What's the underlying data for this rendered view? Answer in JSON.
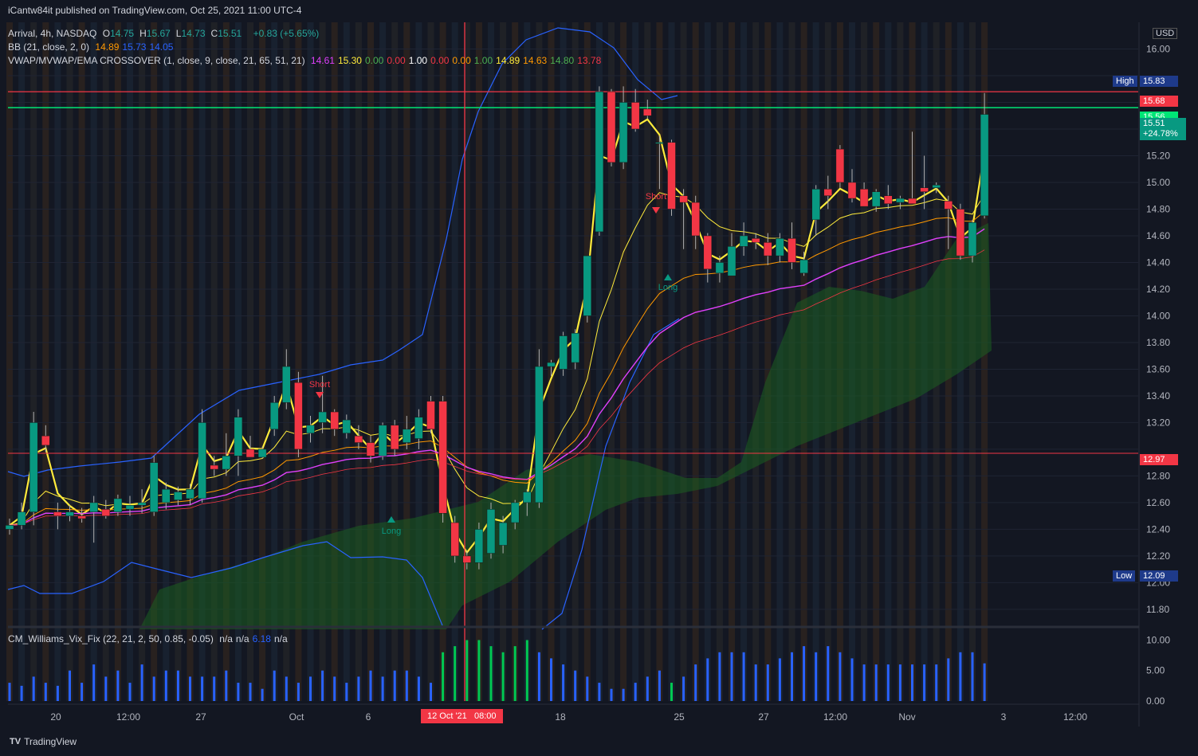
{
  "published": "iCantw84it published on TradingView.com, Oct 25, 2021 11:00 UTC-4",
  "legend": {
    "symbol": "Arrival, 4h, NASDAQ",
    "ohlc": [
      {
        "k": "O",
        "v": "14.75"
      },
      {
        "k": "H",
        "v": "15.67"
      },
      {
        "k": "L",
        "v": "14.73"
      },
      {
        "k": "C",
        "v": "15.51"
      }
    ],
    "change": "+0.83 (+5.65%)",
    "bb_label": "BB (21, close, 2, 0)",
    "bb_values": [
      {
        "v": "14.89",
        "color": "#ff9800"
      },
      {
        "v": "15.73",
        "color": "#2962ff"
      },
      {
        "v": "14.05",
        "color": "#2962ff"
      }
    ],
    "vwap_label": "VWAP/MVWAP/EMA CROSSOVER (1, close, 9, close, 21, 65, 51, 21)",
    "vwap_values": [
      {
        "v": "14.61",
        "color": "#e040fb"
      },
      {
        "v": "15.30",
        "color": "#ffeb3b"
      },
      {
        "v": "0.00",
        "color": "#4caf50"
      },
      {
        "v": "0.00",
        "color": "#f23645"
      },
      {
        "v": "1.00",
        "color": "#ffffff"
      },
      {
        "v": "0.00",
        "color": "#f23645"
      },
      {
        "v": "0.00",
        "color": "#ff9800"
      },
      {
        "v": "1.00",
        "color": "#4caf50"
      },
      {
        "v": "14.89",
        "color": "#ffeb3b"
      },
      {
        "v": "14.63",
        "color": "#ff9800"
      },
      {
        "v": "14.80",
        "color": "#4caf50"
      },
      {
        "v": "13.78",
        "color": "#f23645"
      }
    ],
    "cm_label": "CM_Williams_Vix_Fix (22, 21, 2, 50, 0.85, -0.05)",
    "cm_values": [
      "n/a",
      "n/a",
      "6.18",
      "n/a"
    ]
  },
  "currency": "USD",
  "price_axis": [
    "16.00",
    "15.60",
    "15.40",
    "15.20",
    "15.00",
    "14.80",
    "14.60",
    "14.40",
    "14.20",
    "14.00",
    "13.80",
    "13.60",
    "13.40",
    "13.20",
    "12.80",
    "12.60",
    "12.40",
    "12.20",
    "12.00",
    "11.80"
  ],
  "vix_axis": [
    "10.00",
    "5.00",
    "0.00"
  ],
  "time_axis": [
    {
      "t": "20",
      "x": 70
    },
    {
      "t": "12:00",
      "x": 161
    },
    {
      "t": "27",
      "x": 252
    },
    {
      "t": "Oct",
      "x": 372
    },
    {
      "t": "6",
      "x": 462
    },
    {
      "t": "18",
      "x": 703
    },
    {
      "t": "25",
      "x": 852
    },
    {
      "t": "27",
      "x": 958
    },
    {
      "t": "12:00",
      "x": 1048
    },
    {
      "t": "Nov",
      "x": 1138
    },
    {
      "t": "3",
      "x": 1259
    },
    {
      "t": "12:00",
      "x": 1349
    }
  ],
  "crosshair_date": "12 Oct '21",
  "crosshair_time": "08:00",
  "high_label": "High",
  "high_value": "15.83",
  "low_label": "Low",
  "low_value": "12.09",
  "line_red_top": "15.68",
  "line_green": "15.56",
  "last_price": "15.51",
  "last_change": "+24.78%",
  "line_red_bottom": "12.97",
  "signals": [
    "Short",
    "Long",
    "Short",
    "Long"
  ],
  "footer": "TradingView",
  "chart_data": {
    "type": "candlestick",
    "title": "Arrival, 4h, NASDAQ",
    "ylim": [
      11.7,
      16.2
    ],
    "candles": [
      {
        "o": 12.4,
        "h": 12.48,
        "l": 12.36,
        "c": 12.43
      },
      {
        "o": 12.43,
        "h": 12.6,
        "l": 12.4,
        "c": 12.53
      },
      {
        "o": 12.53,
        "h": 13.28,
        "l": 12.43,
        "c": 13.2
      },
      {
        "o": 13.1,
        "h": 13.18,
        "l": 12.98,
        "c": 13.03
      },
      {
        "o": 12.53,
        "h": 12.6,
        "l": 12.4,
        "c": 12.5
      },
      {
        "o": 12.5,
        "h": 12.58,
        "l": 12.46,
        "c": 12.53
      },
      {
        "o": 12.5,
        "h": 12.56,
        "l": 12.45,
        "c": 12.48
      },
      {
        "o": 12.53,
        "h": 12.65,
        "l": 12.3,
        "c": 12.6
      },
      {
        "o": 12.55,
        "h": 12.62,
        "l": 12.48,
        "c": 12.5
      },
      {
        "o": 12.53,
        "h": 12.66,
        "l": 12.5,
        "c": 12.63
      },
      {
        "o": 12.55,
        "h": 12.65,
        "l": 12.5,
        "c": 12.58
      },
      {
        "o": 12.58,
        "h": 12.7,
        "l": 12.52,
        "c": 12.6
      },
      {
        "o": 12.53,
        "h": 12.95,
        "l": 12.5,
        "c": 12.9
      },
      {
        "o": 12.6,
        "h": 12.75,
        "l": 12.55,
        "c": 12.7
      },
      {
        "o": 12.62,
        "h": 12.72,
        "l": 12.58,
        "c": 12.68
      },
      {
        "o": 12.63,
        "h": 12.74,
        "l": 12.58,
        "c": 12.7
      },
      {
        "o": 12.63,
        "h": 13.3,
        "l": 12.6,
        "c": 13.2
      },
      {
        "o": 12.88,
        "h": 12.95,
        "l": 12.8,
        "c": 12.85
      },
      {
        "o": 12.85,
        "h": 13.12,
        "l": 12.8,
        "c": 12.95
      },
      {
        "o": 12.95,
        "h": 13.3,
        "l": 12.8,
        "c": 13.24
      },
      {
        "o": 13.0,
        "h": 13.1,
        "l": 12.94,
        "c": 12.94
      },
      {
        "o": 12.94,
        "h": 13.02,
        "l": 12.93,
        "c": 13.0
      },
      {
        "o": 13.15,
        "h": 13.4,
        "l": 13.1,
        "c": 13.35
      },
      {
        "o": 13.35,
        "h": 13.75,
        "l": 13.3,
        "c": 13.62
      },
      {
        "o": 13.5,
        "h": 13.58,
        "l": 12.94,
        "c": 13.0
      },
      {
        "o": 13.12,
        "h": 13.25,
        "l": 13.05,
        "c": 13.18
      },
      {
        "o": 13.2,
        "h": 13.55,
        "l": 13.12,
        "c": 13.28
      },
      {
        "o": 13.28,
        "h": 13.3,
        "l": 13.1,
        "c": 13.15
      },
      {
        "o": 13.12,
        "h": 13.26,
        "l": 13.08,
        "c": 13.22
      },
      {
        "o": 13.1,
        "h": 13.18,
        "l": 13.0,
        "c": 13.05
      },
      {
        "o": 13.05,
        "h": 13.1,
        "l": 12.9,
        "c": 12.95
      },
      {
        "o": 12.95,
        "h": 13.2,
        "l": 12.92,
        "c": 13.18
      },
      {
        "o": 13.18,
        "h": 13.22,
        "l": 12.95,
        "c": 13.0
      },
      {
        "o": 13.05,
        "h": 13.25,
        "l": 13.0,
        "c": 13.15
      },
      {
        "o": 13.08,
        "h": 13.3,
        "l": 13.0,
        "c": 13.24
      },
      {
        "o": 13.36,
        "h": 13.4,
        "l": 13.12,
        "c": 13.15
      },
      {
        "o": 13.36,
        "h": 13.4,
        "l": 12.45,
        "c": 12.52
      },
      {
        "o": 12.45,
        "h": 12.5,
        "l": 12.15,
        "c": 12.2
      },
      {
        "o": 12.2,
        "h": 12.24,
        "l": 12.1,
        "c": 12.15
      },
      {
        "o": 12.15,
        "h": 12.45,
        "l": 12.1,
        "c": 12.4
      },
      {
        "o": 12.22,
        "h": 12.6,
        "l": 12.18,
        "c": 12.55
      },
      {
        "o": 12.28,
        "h": 12.5,
        "l": 12.22,
        "c": 12.45
      },
      {
        "o": 12.45,
        "h": 12.62,
        "l": 12.4,
        "c": 12.6
      },
      {
        "o": 12.6,
        "h": 12.7,
        "l": 12.5,
        "c": 12.68
      },
      {
        "o": 12.6,
        "h": 13.75,
        "l": 12.56,
        "c": 13.62
      },
      {
        "o": 13.62,
        "h": 13.67,
        "l": 13.55,
        "c": 13.65
      },
      {
        "o": 13.6,
        "h": 13.88,
        "l": 13.55,
        "c": 13.85
      },
      {
        "o": 13.65,
        "h": 13.9,
        "l": 13.6,
        "c": 13.87
      },
      {
        "o": 14.0,
        "h": 14.45,
        "l": 13.95,
        "c": 14.45
      },
      {
        "o": 14.63,
        "h": 15.72,
        "l": 14.6,
        "c": 15.68
      },
      {
        "o": 15.68,
        "h": 15.7,
        "l": 15.12,
        "c": 15.15
      },
      {
        "o": 15.15,
        "h": 15.72,
        "l": 15.1,
        "c": 15.6
      },
      {
        "o": 15.6,
        "h": 15.7,
        "l": 15.38,
        "c": 15.4
      },
      {
        "o": 15.55,
        "h": 15.62,
        "l": 15.48,
        "c": 15.5
      },
      {
        "o": 15.3,
        "h": 15.35,
        "l": 14.95,
        "c": 15.3
      },
      {
        "o": 15.3,
        "h": 15.32,
        "l": 14.75,
        "c": 14.8
      },
      {
        "o": 14.9,
        "h": 14.95,
        "l": 14.5,
        "c": 14.85
      },
      {
        "o": 14.85,
        "h": 14.9,
        "l": 14.5,
        "c": 14.6
      },
      {
        "o": 14.6,
        "h": 14.62,
        "l": 14.25,
        "c": 14.35
      },
      {
        "o": 14.32,
        "h": 14.45,
        "l": 14.25,
        "c": 14.4
      },
      {
        "o": 14.3,
        "h": 14.62,
        "l": 14.3,
        "c": 14.52
      },
      {
        "o": 14.52,
        "h": 14.7,
        "l": 14.45,
        "c": 14.6
      },
      {
        "o": 14.58,
        "h": 14.62,
        "l": 14.5,
        "c": 14.55
      },
      {
        "o": 14.55,
        "h": 14.62,
        "l": 14.38,
        "c": 14.45
      },
      {
        "o": 14.45,
        "h": 14.62,
        "l": 14.4,
        "c": 14.58
      },
      {
        "o": 14.58,
        "h": 14.7,
        "l": 14.35,
        "c": 14.4
      },
      {
        "o": 14.32,
        "h": 14.48,
        "l": 14.3,
        "c": 14.42
      },
      {
        "o": 14.72,
        "h": 14.98,
        "l": 14.6,
        "c": 14.95
      },
      {
        "o": 14.95,
        "h": 15.05,
        "l": 14.8,
        "c": 14.9
      },
      {
        "o": 15.25,
        "h": 15.28,
        "l": 14.96,
        "c": 15.0
      },
      {
        "o": 15.0,
        "h": 15.1,
        "l": 14.85,
        "c": 14.88
      },
      {
        "o": 14.95,
        "h": 15.0,
        "l": 14.82,
        "c": 14.82
      },
      {
        "o": 14.82,
        "h": 14.95,
        "l": 14.78,
        "c": 14.93
      },
      {
        "o": 14.9,
        "h": 14.98,
        "l": 14.8,
        "c": 14.84
      },
      {
        "o": 14.85,
        "h": 14.9,
        "l": 14.8,
        "c": 14.88
      },
      {
        "o": 14.88,
        "h": 15.38,
        "l": 14.84,
        "c": 14.84
      },
      {
        "o": 14.96,
        "h": 15.2,
        "l": 14.8,
        "c": 14.93
      },
      {
        "o": 14.96,
        "h": 15.0,
        "l": 14.92,
        "c": 14.98
      },
      {
        "o": 14.86,
        "h": 14.9,
        "l": 14.5,
        "c": 14.8
      },
      {
        "o": 14.8,
        "h": 14.84,
        "l": 14.42,
        "c": 14.45
      },
      {
        "o": 14.45,
        "h": 14.72,
        "l": 14.4,
        "c": 14.7
      },
      {
        "o": 14.75,
        "h": 15.67,
        "l": 14.73,
        "c": 15.51
      }
    ],
    "vix": [
      3,
      2.5,
      4,
      3,
      2.5,
      5,
      3,
      6,
      4,
      5,
      3,
      6,
      4,
      5,
      5,
      4,
      4,
      4,
      5,
      3,
      3,
      2,
      5,
      4,
      3,
      4,
      5,
      4,
      3,
      4,
      5,
      4,
      5,
      5,
      4,
      3,
      8,
      9,
      10,
      10,
      9,
      8,
      9,
      10,
      8,
      7,
      6,
      5,
      4,
      3,
      2,
      2,
      3,
      4,
      5,
      3,
      4,
      6,
      7,
      8,
      8,
      8,
      6,
      6,
      7,
      8,
      9,
      8,
      9,
      8,
      7,
      6,
      6,
      6,
      6,
      6,
      6,
      6,
      7,
      8,
      8,
      6.18
    ]
  }
}
